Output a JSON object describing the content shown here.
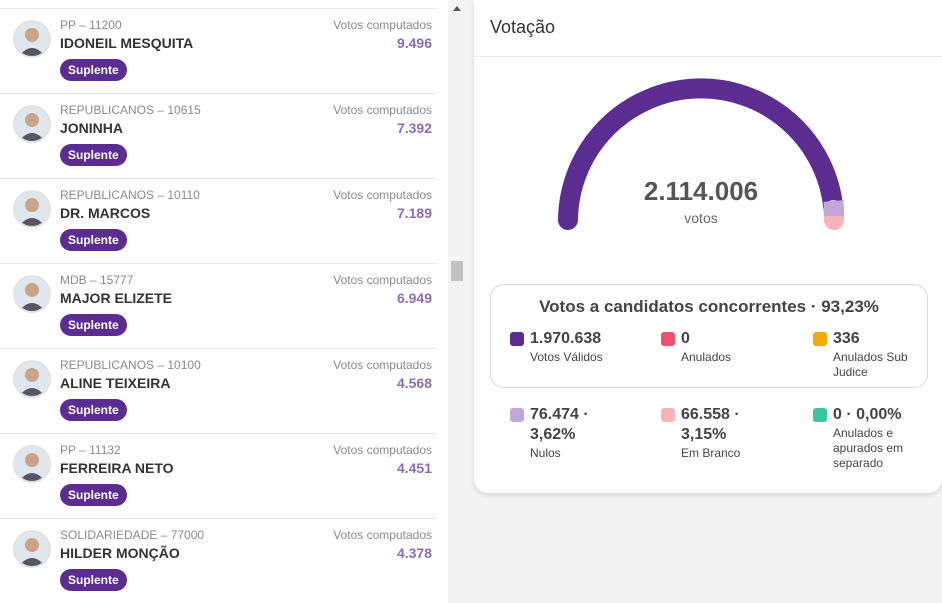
{
  "candidates": [
    {
      "party": "PP – 11200",
      "name": "IDONEIL MESQUITA",
      "votes_label": "Votos computados",
      "votes": "9.496",
      "status": "Suplente"
    },
    {
      "party": "REPUBLICANOS – 10615",
      "name": "JONINHA",
      "votes_label": "Votos computados",
      "votes": "7.392",
      "status": "Suplente"
    },
    {
      "party": "REPUBLICANOS – 10110",
      "name": "DR. MARCOS",
      "votes_label": "Votos computados",
      "votes": "7.189",
      "status": "Suplente"
    },
    {
      "party": "MDB – 15777",
      "name": "MAJOR ELIZETE",
      "votes_label": "Votos computados",
      "votes": "6.949",
      "status": "Suplente"
    },
    {
      "party": "REPUBLICANOS – 10100",
      "name": "ALINE TEIXEIRA",
      "votes_label": "Votos computados",
      "votes": "4.568",
      "status": "Suplente"
    },
    {
      "party": "PP – 11132",
      "name": "FERREIRA NETO",
      "votes_label": "Votos computados",
      "votes": "4.451",
      "status": "Suplente"
    },
    {
      "party": "SOLIDARIEDADE – 77000",
      "name": "HILDER MONÇÃO",
      "votes_label": "Votos computados",
      "votes": "4.378",
      "status": "Suplente"
    }
  ],
  "panel": {
    "title": "Votação",
    "total": "2.114.006",
    "total_unit": "votos",
    "box_title": "Votos a candidatos concorrentes · 93,23%",
    "box_items": [
      {
        "value": "1.970.638",
        "label": "Votos Válidos",
        "color": "#5c2d91"
      },
      {
        "value": "0",
        "label": "Anulados",
        "color": "#f0506e"
      },
      {
        "value": "336",
        "label": "Anulados Sub Judice",
        "color": "#f5a800"
      }
    ],
    "other_items": [
      {
        "value": "76.474 · 3,62%",
        "label": "Nulos",
        "color": "#c3a6d8"
      },
      {
        "value": "66.558 · 3,15%",
        "label": "Em Branco",
        "color": "#f6b3bc"
      },
      {
        "value": "0 · 0,00%",
        "label": "Anulados e apurados em separado",
        "color": "#3cc49a"
      }
    ]
  }
}
